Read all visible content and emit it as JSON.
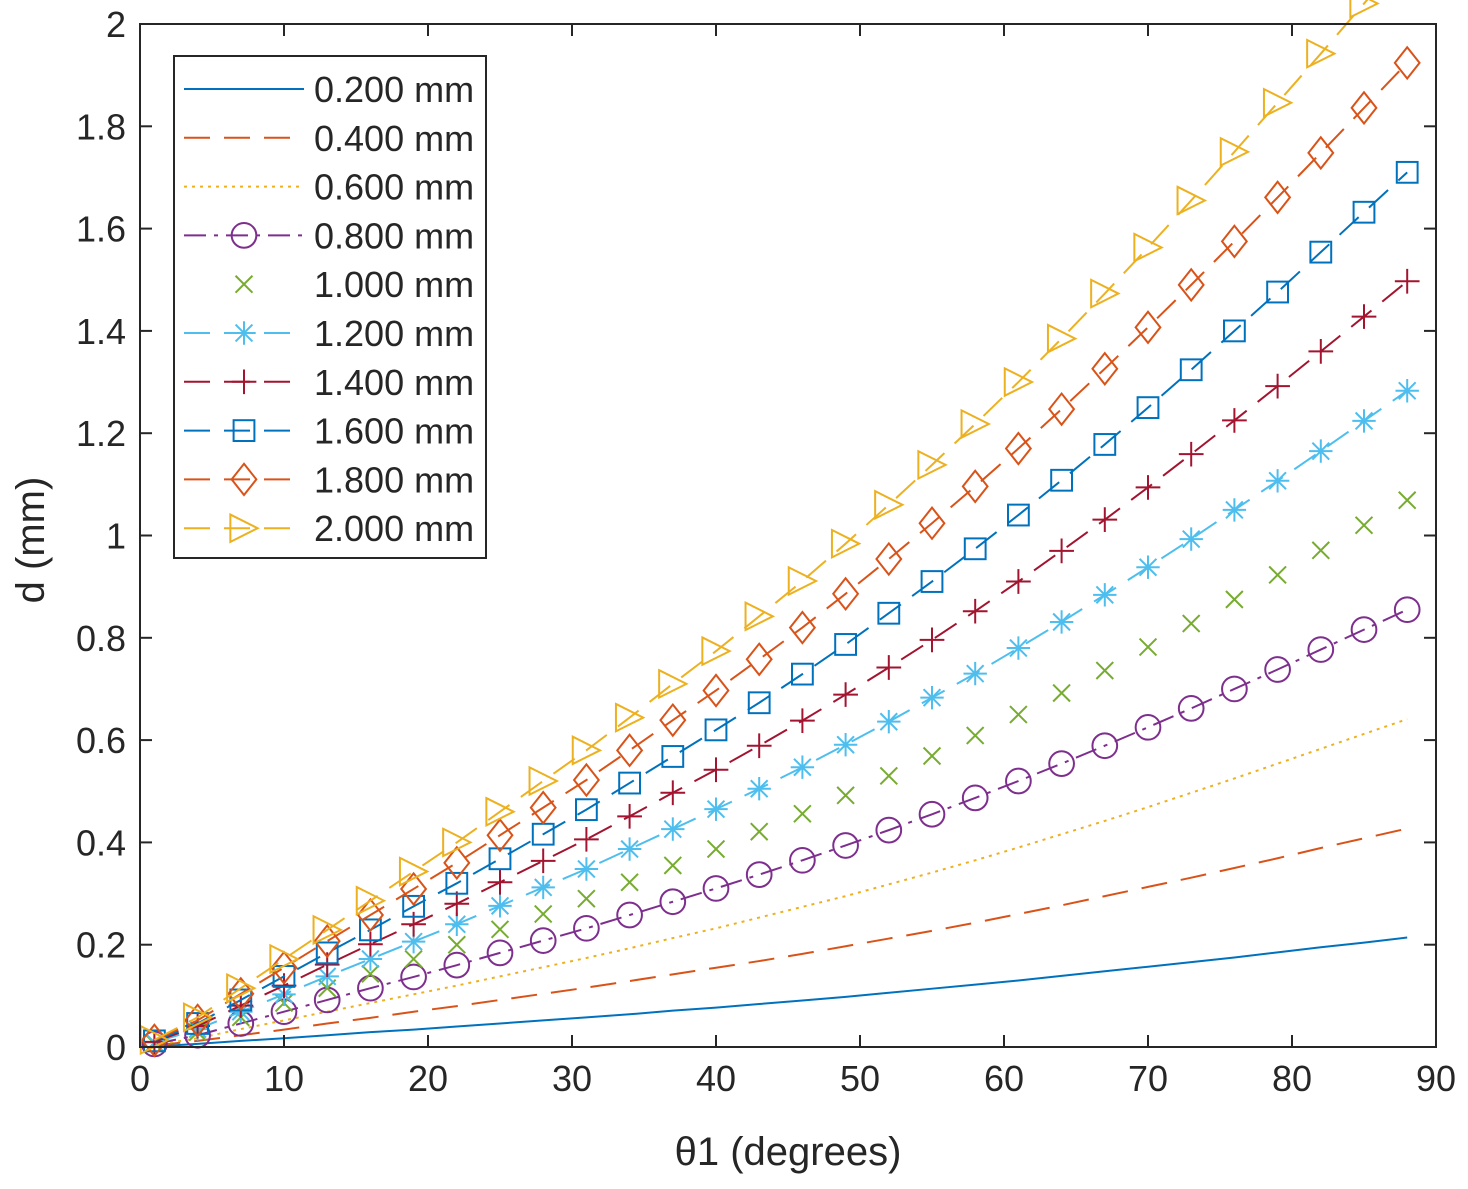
{
  "chart_data": {
    "type": "line",
    "title": "",
    "xlabel": "θ1 (degrees)",
    "ylabel": "d (mm)",
    "xlim": [
      0,
      90
    ],
    "ylim": [
      0,
      2
    ],
    "xticks": [
      0,
      10,
      20,
      30,
      40,
      50,
      60,
      70,
      80,
      90
    ],
    "yticks": [
      0,
      0.2,
      0.4,
      0.6,
      0.8,
      1,
      1.2,
      1.4,
      1.6,
      1.8,
      2
    ],
    "xtick_labels": [
      "0",
      "10",
      "20",
      "30",
      "40",
      "50",
      "60",
      "70",
      "80",
      "90"
    ],
    "ytick_labels": [
      "0",
      "0.2",
      "0.4",
      "0.6",
      "0.8",
      "1",
      "1.2",
      "1.4",
      "1.6",
      "1.8",
      "2"
    ],
    "grid": false,
    "legend_position": "top-left",
    "x": [
      1,
      4,
      7,
      10,
      13,
      16,
      19,
      22,
      25,
      28,
      31,
      34,
      37,
      40,
      43,
      46,
      49,
      52,
      55,
      58,
      61,
      64,
      67,
      70,
      73,
      76,
      79,
      82,
      85,
      88
    ],
    "series": [
      {
        "name": "0.200 mm",
        "color": "#0072BD",
        "line": "solid",
        "marker": "none",
        "values": [
          0.001,
          0.006,
          0.012,
          0.017,
          0.023,
          0.029,
          0.034,
          0.04,
          0.046,
          0.052,
          0.058,
          0.064,
          0.071,
          0.077,
          0.084,
          0.091,
          0.098,
          0.106,
          0.114,
          0.122,
          0.13,
          0.139,
          0.148,
          0.157,
          0.166,
          0.175,
          0.185,
          0.195,
          0.204,
          0.214
        ]
      },
      {
        "name": "0.400 mm",
        "color": "#D95319",
        "line": "dashed",
        "marker": "none",
        "values": [
          0.003,
          0.012,
          0.023,
          0.034,
          0.046,
          0.057,
          0.069,
          0.08,
          0.092,
          0.104,
          0.116,
          0.129,
          0.142,
          0.155,
          0.168,
          0.182,
          0.197,
          0.212,
          0.227,
          0.243,
          0.26,
          0.277,
          0.295,
          0.313,
          0.331,
          0.35,
          0.369,
          0.389,
          0.408,
          0.427
        ]
      },
      {
        "name": "0.600 mm",
        "color": "#EDB120",
        "line": "dotted",
        "marker": "none",
        "values": [
          0.004,
          0.017,
          0.035,
          0.052,
          0.069,
          0.086,
          0.103,
          0.12,
          0.138,
          0.156,
          0.174,
          0.193,
          0.213,
          0.232,
          0.253,
          0.274,
          0.295,
          0.318,
          0.341,
          0.365,
          0.39,
          0.416,
          0.442,
          0.469,
          0.497,
          0.525,
          0.554,
          0.583,
          0.612,
          0.641
        ]
      },
      {
        "name": "0.800 mm",
        "color": "#7E2F8E",
        "line": "dashdot",
        "marker": "circle",
        "values": [
          0.006,
          0.023,
          0.046,
          0.069,
          0.092,
          0.115,
          0.137,
          0.16,
          0.184,
          0.208,
          0.232,
          0.258,
          0.284,
          0.31,
          0.337,
          0.365,
          0.394,
          0.424,
          0.455,
          0.487,
          0.52,
          0.554,
          0.589,
          0.625,
          0.662,
          0.7,
          0.738,
          0.777,
          0.816,
          0.855
        ]
      },
      {
        "name": "1.000 mm",
        "color": "#77AC30",
        "line": "none",
        "marker": "x",
        "values": [
          0.007,
          0.029,
          0.058,
          0.086,
          0.115,
          0.143,
          0.172,
          0.2,
          0.23,
          0.26,
          0.29,
          0.322,
          0.355,
          0.387,
          0.421,
          0.456,
          0.492,
          0.53,
          0.569,
          0.609,
          0.65,
          0.692,
          0.736,
          0.782,
          0.828,
          0.875,
          0.923,
          0.971,
          1.02,
          1.069
        ]
      },
      {
        "name": "1.200 mm",
        "color": "#4DBEEE",
        "line": "dashed",
        "marker": "star",
        "values": [
          0.009,
          0.035,
          0.069,
          0.103,
          0.138,
          0.172,
          0.206,
          0.24,
          0.276,
          0.312,
          0.348,
          0.387,
          0.426,
          0.465,
          0.505,
          0.547,
          0.591,
          0.636,
          0.683,
          0.73,
          0.78,
          0.831,
          0.884,
          0.938,
          0.993,
          1.05,
          1.107,
          1.165,
          1.224,
          1.283
        ]
      },
      {
        "name": "1.400 mm",
        "color": "#A2142F",
        "line": "dashed",
        "marker": "plus",
        "values": [
          0.01,
          0.041,
          0.081,
          0.12,
          0.161,
          0.201,
          0.24,
          0.28,
          0.322,
          0.364,
          0.406,
          0.451,
          0.497,
          0.542,
          0.589,
          0.638,
          0.689,
          0.742,
          0.796,
          0.852,
          0.91,
          0.97,
          1.031,
          1.094,
          1.159,
          1.225,
          1.292,
          1.36,
          1.428,
          1.497
        ]
      },
      {
        "name": "1.600 mm",
        "color": "#0072BD",
        "line": "dashed",
        "marker": "square",
        "values": [
          0.012,
          0.046,
          0.092,
          0.138,
          0.184,
          0.229,
          0.275,
          0.32,
          0.368,
          0.416,
          0.464,
          0.516,
          0.568,
          0.62,
          0.673,
          0.729,
          0.787,
          0.848,
          0.91,
          0.974,
          1.04,
          1.108,
          1.178,
          1.25,
          1.324,
          1.4,
          1.476,
          1.554,
          1.632,
          1.71
        ]
      },
      {
        "name": "1.800 mm",
        "color": "#D95319",
        "line": "dashed",
        "marker": "diamond",
        "values": [
          0.013,
          0.052,
          0.104,
          0.155,
          0.207,
          0.258,
          0.309,
          0.36,
          0.414,
          0.468,
          0.522,
          0.58,
          0.639,
          0.697,
          0.758,
          0.82,
          0.886,
          0.954,
          1.024,
          1.096,
          1.17,
          1.247,
          1.326,
          1.407,
          1.49,
          1.575,
          1.661,
          1.748,
          1.836,
          1.924
        ]
      },
      {
        "name": "2.000 mm",
        "color": "#EDB120",
        "line": "dashed",
        "marker": "triangle-right",
        "values": [
          0.014,
          0.058,
          0.115,
          0.172,
          0.229,
          0.286,
          0.343,
          0.4,
          0.46,
          0.52,
          0.58,
          0.644,
          0.71,
          0.774,
          0.842,
          0.911,
          0.984,
          1.06,
          1.138,
          1.218,
          1.3,
          1.385,
          1.473,
          1.563,
          1.655,
          1.75,
          1.846,
          1.942,
          2.04,
          2.138
        ]
      }
    ]
  }
}
